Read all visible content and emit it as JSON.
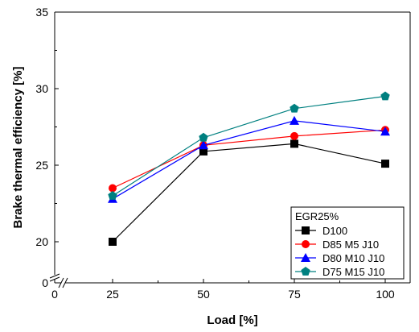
{
  "chart_data": {
    "type": "line",
    "xlabel": "Load [%]",
    "ylabel": "Brake thermal efficiency [%]",
    "x": [
      25,
      50,
      75,
      100
    ],
    "x_ticks": [
      "0",
      "25",
      "50",
      "75",
      "100"
    ],
    "y_ticks": [
      "0",
      "20",
      "25",
      "30",
      "35"
    ],
    "ylim": [
      18,
      35
    ],
    "y_axis_break": {
      "below": 18,
      "to": 0
    },
    "x_axis_break": {
      "from": 0,
      "to": 25
    },
    "grid": false,
    "legend": {
      "title": "EGR25%",
      "placement": "bottom-right"
    },
    "series": [
      {
        "name": "D100",
        "values": [
          20.0,
          25.9,
          26.4,
          25.1
        ],
        "color": "#000000",
        "marker": "square"
      },
      {
        "name": "D85 M5 J10",
        "values": [
          23.5,
          26.3,
          26.9,
          27.3
        ],
        "color": "#ff0000",
        "marker": "circle"
      },
      {
        "name": "D80 M10 J10",
        "values": [
          22.8,
          26.3,
          27.9,
          27.2
        ],
        "color": "#0000ff",
        "marker": "triangle"
      },
      {
        "name": "D75 M15 J10",
        "values": [
          23.0,
          26.8,
          28.7,
          29.5
        ],
        "color": "#008080",
        "marker": "pentagon"
      }
    ]
  }
}
